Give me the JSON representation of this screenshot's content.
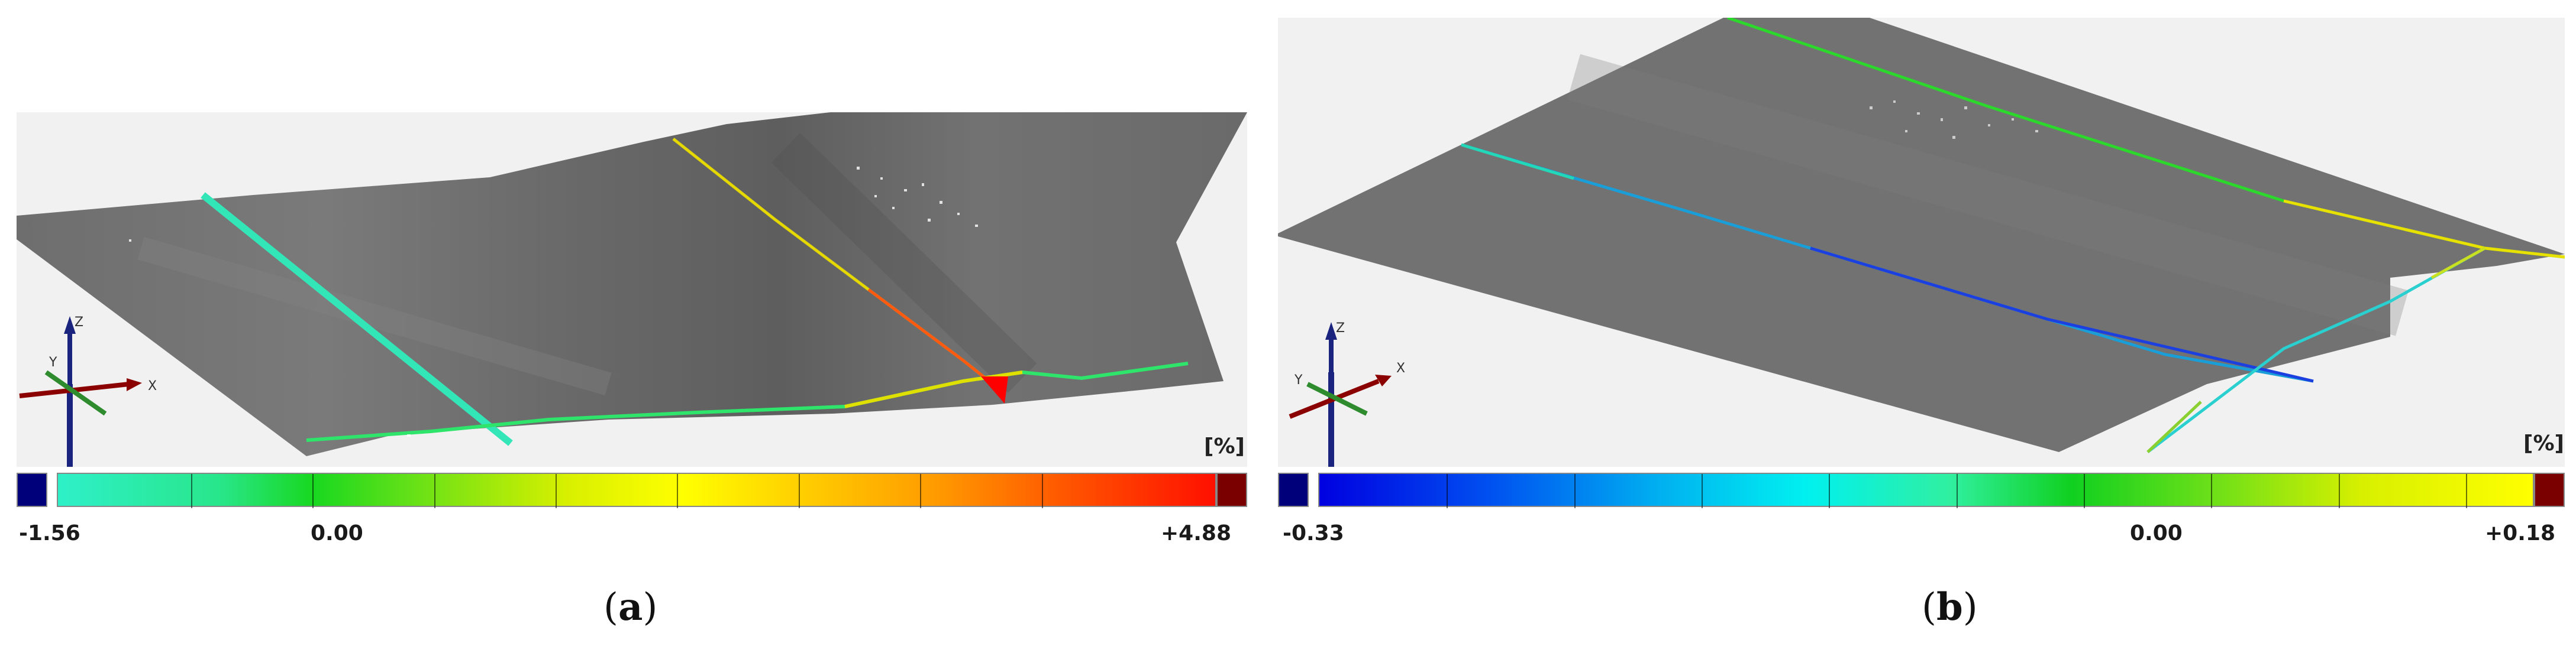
{
  "panels": [
    {
      "id": "a",
      "unit": "[%]",
      "scale_min": "-1.56",
      "scale_zero": "0.00",
      "scale_max": "+4.88",
      "under_color": "#00007a",
      "over_color": "#7a0000",
      "axes": [
        "Z",
        "Y",
        "X"
      ],
      "caption_open": "(",
      "caption_letter": "a",
      "caption_close": ")"
    },
    {
      "id": "b",
      "unit": "[%]",
      "scale_min": "-0.33",
      "scale_zero": "0.00",
      "scale_max": "+0.18",
      "under_color": "#00007a",
      "over_color": "#7a0000",
      "axes": [
        "Z",
        "Y",
        "X"
      ],
      "caption_open": "(",
      "caption_letter": "b",
      "caption_close": ")"
    }
  ]
}
